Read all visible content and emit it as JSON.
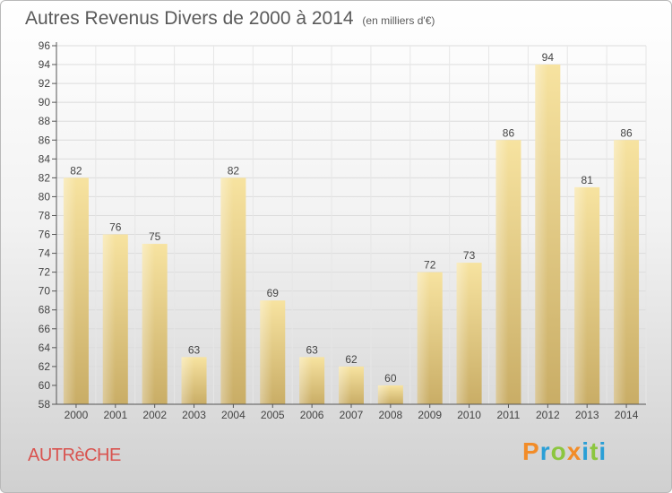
{
  "header": {
    "title": "Autres Revenus Divers de 2000 à 2014",
    "unit": "(en milliers d'€)"
  },
  "footer": {
    "place": "AUTRèCHE",
    "logo": "Proxiti",
    "logo_colors": [
      "#f28c28",
      "#2a9fd6",
      "#8cc63f",
      "#f28c28",
      "#2a9fd6",
      "#8cc63f",
      "#2a9fd6"
    ]
  },
  "chart_data": {
    "type": "bar",
    "categories": [
      "2000",
      "2001",
      "2002",
      "2003",
      "2004",
      "2005",
      "2006",
      "2007",
      "2008",
      "2009",
      "2010",
      "2011",
      "2012",
      "2013",
      "2014"
    ],
    "values": [
      82,
      76,
      75,
      63,
      82,
      69,
      63,
      62,
      60,
      72,
      73,
      86,
      94,
      81,
      86
    ],
    "ylim": [
      58,
      96
    ],
    "ytick_step": 2,
    "grid": true,
    "bar_color": "#e8cf80"
  }
}
